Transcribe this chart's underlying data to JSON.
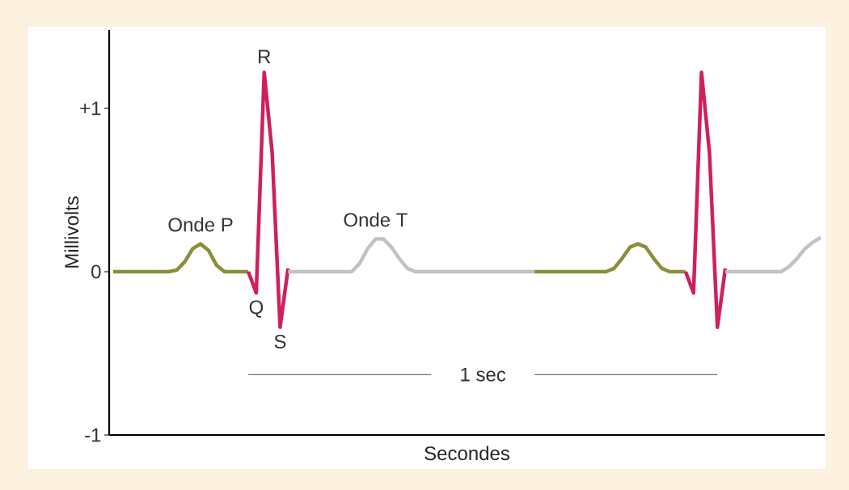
{
  "chart_data": {
    "type": "line",
    "xlabel": "Secondes",
    "ylabel": "Millivolts",
    "ylim": [
      -1,
      1.48
    ],
    "yticks": [
      {
        "value": 1,
        "label": "+1"
      },
      0,
      -1
    ],
    "tick_labels": "y",
    "marker": "none",
    "line_style": "solid",
    "grid": false,
    "categories": [
      null,
      null,
      null,
      null,
      null,
      null,
      null,
      null,
      null,
      null,
      null,
      null,
      null,
      null,
      null,
      null,
      null,
      null,
      null,
      null,
      null,
      null,
      null,
      null,
      null,
      null,
      null,
      null,
      null,
      null,
      null,
      null,
      null,
      null,
      null,
      null,
      null,
      null,
      null,
      null,
      null,
      null,
      null,
      null,
      null,
      null,
      null,
      null,
      null,
      null,
      null,
      null,
      null,
      null,
      null,
      null,
      null,
      null,
      null,
      null,
      null,
      null,
      null,
      null,
      null,
      null,
      null,
      null,
      null,
      null,
      null,
      null,
      null,
      null,
      null,
      null,
      null,
      null,
      null,
      null,
      null,
      null,
      null,
      null,
      null,
      null,
      null,
      null,
      null,
      null
    ],
    "series": [
      {
        "color": "#8b8f3a",
        "values": [
          0,
          0,
          0,
          0,
          0,
          0,
          0,
          0,
          0.01,
          0.06,
          0.14,
          0.17,
          0.13,
          0.04,
          0,
          0,
          0,
          0,
          null,
          null,
          null,
          null,
          null,
          null,
          null,
          null,
          null,
          null,
          null,
          null,
          null,
          null,
          null,
          null,
          null,
          null,
          null,
          null,
          null,
          null,
          null,
          null,
          null,
          null,
          null,
          null,
          null,
          null,
          null,
          null,
          null,
          null,
          null,
          null,
          null,
          null,
          null,
          null,
          null,
          null,
          null,
          null,
          null,
          null,
          null,
          null,
          null,
          null,
          null,
          null,
          null,
          null,
          null,
          null,
          null,
          null,
          null,
          null,
          null,
          null,
          null,
          null,
          null,
          null,
          null,
          null,
          null,
          null,
          null,
          null
        ]
      },
      {
        "color": "#d01f5e",
        "values": [
          null,
          null,
          null,
          null,
          null,
          null,
          null,
          null,
          null,
          null,
          null,
          null,
          null,
          null,
          null,
          null,
          null,
          0,
          -0.13,
          1.22,
          0.73,
          -0.34,
          0.02,
          null,
          null,
          null,
          null,
          null,
          null,
          null,
          null,
          null,
          null,
          null,
          null,
          null,
          null,
          null,
          null,
          null,
          null,
          null,
          null,
          null,
          null,
          null,
          null,
          null,
          null,
          null,
          null,
          null,
          null,
          null,
          null,
          null,
          null,
          null,
          null,
          null,
          null,
          null,
          null,
          null,
          null,
          null,
          null,
          null,
          null,
          null,
          null,
          null,
          null,
          null,
          null,
          null,
          null,
          null,
          null,
          null,
          null,
          null,
          null,
          null,
          null,
          null,
          null,
          null,
          null,
          null
        ]
      },
      {
        "color": "#c2c2c2",
        "values": [
          null,
          null,
          null,
          null,
          null,
          null,
          null,
          null,
          null,
          null,
          null,
          null,
          null,
          null,
          null,
          null,
          null,
          null,
          null,
          null,
          null,
          null,
          0,
          0,
          0,
          0,
          0,
          0,
          0,
          0,
          0,
          0.05,
          0.14,
          0.2,
          0.2,
          0.15,
          0.08,
          0.02,
          0,
          0,
          0,
          0,
          0,
          0,
          0,
          0,
          0,
          0,
          0,
          0,
          0,
          0,
          0,
          0,
          null,
          null,
          null,
          null,
          null,
          null,
          null,
          null,
          null,
          null,
          null,
          null,
          null,
          null,
          null,
          null,
          null,
          null,
          null,
          null,
          null,
          null,
          null,
          null,
          null,
          null,
          null,
          null,
          null,
          null,
          null,
          null,
          null,
          null,
          null,
          null
        ]
      },
      {
        "color": "#8b8f3a",
        "values": [
          null,
          null,
          null,
          null,
          null,
          null,
          null,
          null,
          null,
          null,
          null,
          null,
          null,
          null,
          null,
          null,
          null,
          null,
          null,
          null,
          null,
          null,
          null,
          null,
          null,
          null,
          null,
          null,
          null,
          null,
          null,
          null,
          null,
          null,
          null,
          null,
          null,
          null,
          null,
          null,
          null,
          null,
          null,
          null,
          null,
          null,
          null,
          null,
          null,
          null,
          null,
          null,
          null,
          0,
          0,
          0,
          0,
          0,
          0,
          0,
          0,
          0,
          0,
          0.02,
          0.08,
          0.15,
          0.17,
          0.15,
          0.08,
          0.02,
          0,
          0,
          0,
          null,
          null,
          null,
          null,
          null,
          null,
          null,
          null,
          null,
          null,
          null,
          null,
          null,
          null,
          null,
          null,
          null
        ]
      },
      {
        "color": "#d01f5e",
        "values": [
          null,
          null,
          null,
          null,
          null,
          null,
          null,
          null,
          null,
          null,
          null,
          null,
          null,
          null,
          null,
          null,
          null,
          null,
          null,
          null,
          null,
          null,
          null,
          null,
          null,
          null,
          null,
          null,
          null,
          null,
          null,
          null,
          null,
          null,
          null,
          null,
          null,
          null,
          null,
          null,
          null,
          null,
          null,
          null,
          null,
          null,
          null,
          null,
          null,
          null,
          null,
          null,
          null,
          null,
          null,
          null,
          null,
          null,
          null,
          null,
          null,
          null,
          null,
          null,
          null,
          null,
          null,
          null,
          null,
          null,
          null,
          null,
          0,
          -0.13,
          1.22,
          0.73,
          -0.34,
          0.02,
          null,
          null,
          null,
          null,
          null,
          null,
          null,
          null,
          null,
          null,
          null,
          null
        ]
      },
      {
        "color": "#c2c2c2",
        "values": [
          null,
          null,
          null,
          null,
          null,
          null,
          null,
          null,
          null,
          null,
          null,
          null,
          null,
          null,
          null,
          null,
          null,
          null,
          null,
          null,
          null,
          null,
          null,
          null,
          null,
          null,
          null,
          null,
          null,
          null,
          null,
          null,
          null,
          null,
          null,
          null,
          null,
          null,
          null,
          null,
          null,
          null,
          null,
          null,
          null,
          null,
          null,
          null,
          null,
          null,
          null,
          null,
          null,
          null,
          null,
          null,
          null,
          null,
          null,
          null,
          null,
          null,
          null,
          null,
          null,
          null,
          null,
          null,
          null,
          null,
          null,
          null,
          null,
          null,
          null,
          null,
          null,
          0,
          0,
          0,
          0,
          0,
          0,
          0,
          0,
          0.03,
          0.08,
          0.14,
          0.18,
          0.21
        ]
      },
      {
        "name": "1 sec",
        "color": "#4c4c4c",
        "values": [
          null,
          null,
          null,
          null,
          null,
          null,
          null,
          null,
          null,
          null,
          null,
          null,
          null,
          null,
          null,
          null,
          null,
          -0.63,
          -0.63,
          -0.63,
          -0.63,
          -0.63,
          -0.63,
          -0.63,
          -0.63,
          -0.63,
          -0.63,
          -0.63,
          -0.63,
          -0.63,
          -0.63,
          -0.63,
          -0.63,
          -0.63,
          -0.63,
          -0.63,
          -0.63,
          -0.63,
          -0.63,
          -0.63,
          -0.63,
          null,
          null,
          null,
          null,
          null,
          null,
          null,
          null,
          null,
          null,
          null,
          null,
          -0.63,
          -0.63,
          -0.63,
          -0.63,
          -0.63,
          -0.63,
          -0.63,
          -0.63,
          -0.63,
          -0.63,
          -0.63,
          -0.63,
          -0.63,
          -0.63,
          -0.63,
          -0.63,
          -0.63,
          -0.63,
          -0.63,
          -0.63,
          -0.63,
          -0.63,
          -0.63,
          -0.63,
          null,
          null,
          null,
          null,
          null,
          null,
          null,
          null,
          null,
          null,
          null,
          null,
          null
        ]
      }
    ],
    "annotations": [
      {
        "text": "Onde P",
        "y": 0.17
      },
      {
        "text": "Onde T",
        "y": 0.2
      },
      {
        "text": "R",
        "y": 1.22
      },
      {
        "text": "Q",
        "y": -0.13
      },
      {
        "text": "S",
        "y": -0.34
      }
    ]
  }
}
